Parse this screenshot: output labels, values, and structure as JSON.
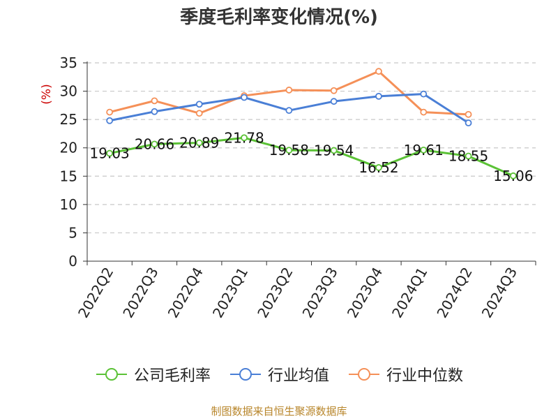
{
  "chart_data": {
    "type": "line",
    "title": "季度毛利率变化情况(%)",
    "ylabel": "(%)",
    "xlabel": "",
    "ylim": [
      0,
      35
    ],
    "yticks": [
      0,
      5,
      10,
      15,
      20,
      25,
      30,
      35
    ],
    "grid": true,
    "legend_position": "bottom",
    "categories": [
      "2022Q2",
      "2022Q3",
      "2022Q4",
      "2023Q1",
      "2023Q2",
      "2023Q3",
      "2023Q4",
      "2024Q1",
      "2024Q2",
      "2024Q3"
    ],
    "series": [
      {
        "name": "公司毛利率",
        "color": "#5bc236",
        "values": [
          19.03,
          20.66,
          20.89,
          21.78,
          19.58,
          19.54,
          16.52,
          19.61,
          18.55,
          15.06
        ],
        "labels": [
          "19.03",
          "20.66",
          "20.89",
          "21.78",
          "19.58",
          "19.54",
          "16.52",
          "19.61",
          "18.55",
          "15.06"
        ]
      },
      {
        "name": "行业均值",
        "color": "#4a7fd6",
        "values": [
          24.8,
          26.4,
          27.7,
          28.9,
          26.6,
          28.2,
          29.1,
          29.5,
          24.4,
          null
        ]
      },
      {
        "name": "行业中位数",
        "color": "#f59058",
        "values": [
          26.3,
          28.3,
          26.1,
          29.2,
          30.2,
          30.1,
          33.5,
          26.3,
          25.9,
          null
        ]
      }
    ]
  },
  "footer": {
    "source": "制图数据来自恒生聚源数据库"
  }
}
